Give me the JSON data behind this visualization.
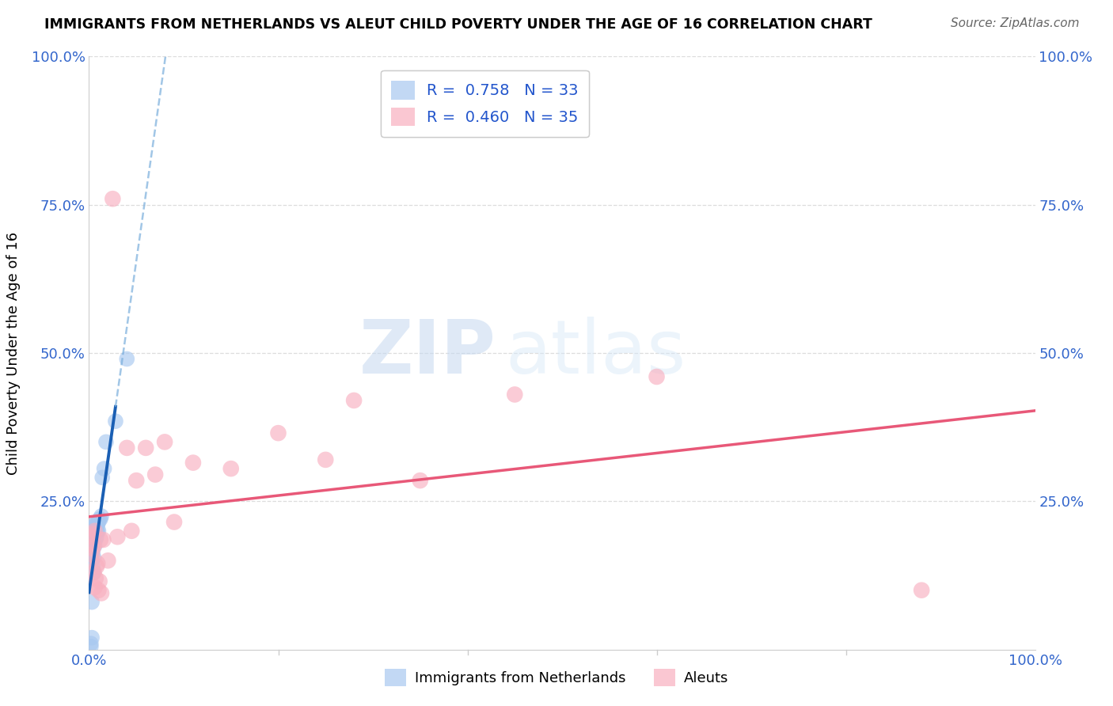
{
  "title": "IMMIGRANTS FROM NETHERLANDS VS ALEUT CHILD POVERTY UNDER THE AGE OF 16 CORRELATION CHART",
  "source": "Source: ZipAtlas.com",
  "ylabel": "Child Poverty Under the Age of 16",
  "xlim": [
    0.0,
    1.0
  ],
  "ylim": [
    0.0,
    1.0
  ],
  "xticks": [
    0.0,
    0.2,
    0.4,
    0.6,
    0.8,
    1.0
  ],
  "yticks": [
    0.0,
    0.25,
    0.5,
    0.75,
    1.0
  ],
  "xticklabels_show": [
    "0.0%",
    "100.0%"
  ],
  "xticklabels_pos": [
    0.0,
    1.0
  ],
  "yticklabels_show": [
    "25.0%",
    "50.0%",
    "75.0%",
    "100.0%"
  ],
  "yticklabels_pos": [
    0.25,
    0.5,
    0.75,
    1.0
  ],
  "legend_r1": "R =  0.758",
  "legend_n1": "N = 33",
  "legend_r2": "R =  0.460",
  "legend_n2": "N = 35",
  "blue_color": "#a8c8f0",
  "pink_color": "#f8b0c0",
  "trendline_blue_solid": "#1a5fb4",
  "trendline_blue_dash": "#7aaedc",
  "trendline_pink": "#e85878",
  "watermark_zip": "ZIP",
  "watermark_atlas": "atlas",
  "blue_scatter_x": [
    0.002,
    0.002,
    0.003,
    0.003,
    0.003,
    0.004,
    0.004,
    0.004,
    0.005,
    0.005,
    0.005,
    0.005,
    0.006,
    0.006,
    0.006,
    0.007,
    0.007,
    0.007,
    0.008,
    0.008,
    0.008,
    0.009,
    0.009,
    0.01,
    0.01,
    0.011,
    0.012,
    0.013,
    0.014,
    0.016,
    0.018,
    0.028,
    0.04
  ],
  "blue_scatter_y": [
    0.005,
    0.01,
    0.15,
    0.08,
    0.02,
    0.185,
    0.165,
    0.14,
    0.2,
    0.185,
    0.155,
    0.13,
    0.21,
    0.195,
    0.175,
    0.21,
    0.195,
    0.185,
    0.215,
    0.2,
    0.19,
    0.21,
    0.2,
    0.215,
    0.2,
    0.22,
    0.22,
    0.225,
    0.29,
    0.305,
    0.35,
    0.385,
    0.49
  ],
  "pink_scatter_x": [
    0.003,
    0.003,
    0.004,
    0.004,
    0.005,
    0.005,
    0.006,
    0.006,
    0.007,
    0.008,
    0.009,
    0.01,
    0.011,
    0.012,
    0.013,
    0.015,
    0.02,
    0.025,
    0.03,
    0.04,
    0.045,
    0.05,
    0.06,
    0.07,
    0.08,
    0.09,
    0.11,
    0.15,
    0.2,
    0.25,
    0.28,
    0.35,
    0.45,
    0.6,
    0.88
  ],
  "pink_scatter_y": [
    0.19,
    0.16,
    0.195,
    0.17,
    0.175,
    0.13,
    0.2,
    0.105,
    0.12,
    0.14,
    0.145,
    0.1,
    0.115,
    0.185,
    0.095,
    0.185,
    0.15,
    0.76,
    0.19,
    0.34,
    0.2,
    0.285,
    0.34,
    0.295,
    0.35,
    0.215,
    0.315,
    0.305,
    0.365,
    0.32,
    0.42,
    0.285,
    0.43,
    0.46,
    0.1
  ],
  "blue_trend_x0": 0.0,
  "blue_trend_x_solid_end": 0.028,
  "blue_trend_x_dash_end": 0.38,
  "pink_trend_x0": 0.0,
  "pink_trend_x1": 1.0,
  "tick_color": "#3366cc",
  "label_color": "#000000",
  "grid_color": "#dddddd",
  "spine_color": "#cccccc"
}
